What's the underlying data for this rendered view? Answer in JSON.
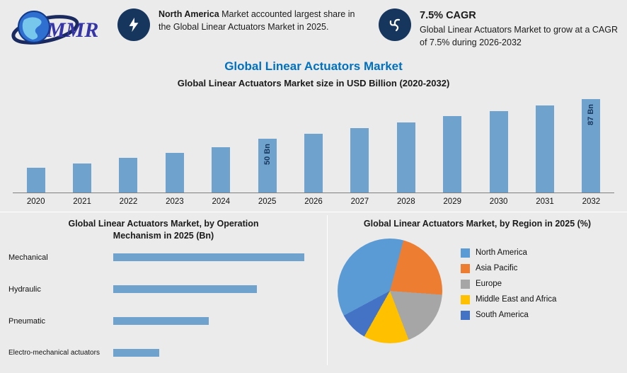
{
  "header": {
    "logo_text": "MMR",
    "callouts": [
      {
        "icon": "lightning-icon",
        "bold": "North America",
        "text": " Market accounted largest share in the Global Linear Actuators Market in 2025."
      },
      {
        "icon": "turbine-icon",
        "bold": "7.5% CAGR",
        "text": "Global Linear Actuators Market to grow at a CAGR of 7.5% during 2026-2032"
      }
    ]
  },
  "title": "Global Linear Actuators Market",
  "subtitle": "Global Linear Actuators Market size in USD Billion (2020-2032)",
  "colors": {
    "accent_blue": "#0070C0",
    "navy_circle": "#17365D",
    "bar_blue": "#6FA3CE"
  },
  "chart_data": [
    {
      "type": "bar",
      "title": "Global Linear Actuators Market size in USD Billion (2020-2032)",
      "categories": [
        "2020",
        "2021",
        "2022",
        "2023",
        "2024",
        "2025",
        "2026",
        "2027",
        "2028",
        "2029",
        "2030",
        "2031",
        "2032"
      ],
      "values": [
        23,
        27,
        32,
        37,
        42,
        50,
        55,
        60,
        65,
        71,
        76,
        81,
        87
      ],
      "ylabel": "USD Billion",
      "ylim": [
        0,
        90
      ],
      "grid": false,
      "bar_color": "#6FA3CE",
      "data_labels": {
        "2025": "50 Bn",
        "2032": "87 Bn"
      }
    },
    {
      "type": "bar",
      "orientation": "horizontal",
      "title": "Global Linear Actuators Market, by Operation Mechanism in 2025 (Bn)",
      "categories": [
        "Mechanical",
        "Hydraulic",
        "Pneumatic",
        "Electro-mechanical actuators"
      ],
      "values": [
        100,
        75,
        50,
        24
      ],
      "note": "relative lengths, no value axis shown",
      "bar_color": "#6FA3CE",
      "grid": false
    },
    {
      "type": "pie",
      "title": "Global Linear Actuators Market, by Region in 2025 (%)",
      "labels": [
        "North America",
        "Asia Pacific",
        "Europe",
        "Middle East and Africa",
        "South America"
      ],
      "values": [
        37,
        22,
        18,
        14,
        9
      ],
      "colors": [
        "#5B9BD5",
        "#ED7D31",
        "#A6A6A6",
        "#FFC000",
        "#4472C4"
      ],
      "legend_position": "right"
    }
  ]
}
